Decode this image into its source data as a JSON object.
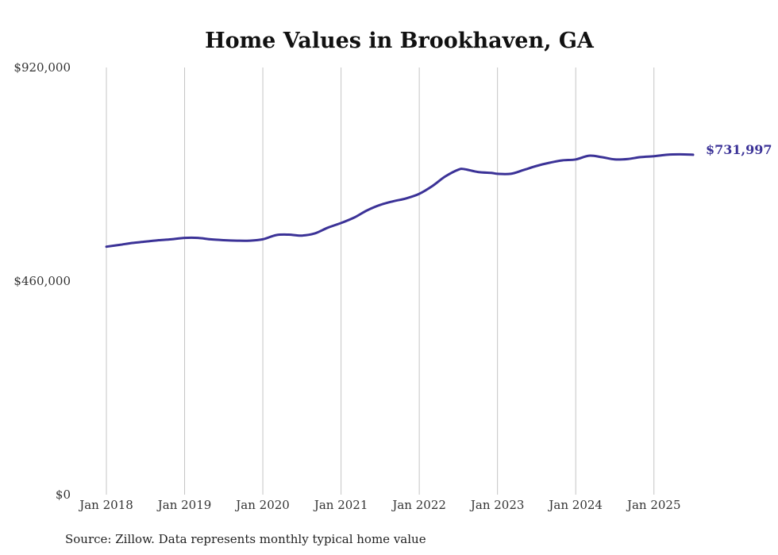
{
  "chart_data": {
    "type": "line",
    "title": "Home Values in Brookhaven, GA",
    "xlabel": "",
    "ylabel": "",
    "ylim": [
      0,
      920000
    ],
    "y_ticks": [
      0,
      460000,
      920000
    ],
    "y_tick_labels": [
      "$0",
      "$460,000",
      "$920,000"
    ],
    "x_range": [
      2018.0,
      2025.5
    ],
    "x_ticks": [
      2018,
      2019,
      2020,
      2021,
      2022,
      2023,
      2024,
      2025
    ],
    "x_tick_labels": [
      "Jan 2018",
      "Jan 2019",
      "Jan 2020",
      "Jan 2021",
      "Jan 2022",
      "Jan 2023",
      "Jan 2024",
      "Jan 2025"
    ],
    "vertical_grid": true,
    "series": [
      {
        "name": "Typical home value",
        "color": "#3b3297",
        "end_label": "$731,997",
        "points": [
          [
            2018.0,
            534000
          ],
          [
            2018.17,
            538000
          ],
          [
            2018.33,
            542000
          ],
          [
            2018.5,
            545000
          ],
          [
            2018.67,
            548000
          ],
          [
            2018.83,
            550000
          ],
          [
            2019.0,
            553000
          ],
          [
            2019.17,
            553000
          ],
          [
            2019.33,
            550000
          ],
          [
            2019.5,
            548000
          ],
          [
            2019.67,
            547000
          ],
          [
            2019.83,
            547000
          ],
          [
            2020.0,
            550000
          ],
          [
            2020.17,
            559000
          ],
          [
            2020.33,
            560000
          ],
          [
            2020.5,
            558000
          ],
          [
            2020.67,
            563000
          ],
          [
            2020.83,
            575000
          ],
          [
            2021.0,
            585000
          ],
          [
            2021.17,
            597000
          ],
          [
            2021.33,
            612000
          ],
          [
            2021.5,
            624000
          ],
          [
            2021.67,
            632000
          ],
          [
            2021.83,
            638000
          ],
          [
            2022.0,
            648000
          ],
          [
            2022.17,
            665000
          ],
          [
            2022.33,
            685000
          ],
          [
            2022.5,
            700000
          ],
          [
            2022.58,
            701000
          ],
          [
            2022.75,
            695000
          ],
          [
            2022.92,
            693000
          ],
          [
            2023.0,
            691000
          ],
          [
            2023.17,
            691000
          ],
          [
            2023.33,
            699000
          ],
          [
            2023.5,
            708000
          ],
          [
            2023.67,
            715000
          ],
          [
            2023.83,
            720000
          ],
          [
            2024.0,
            722000
          ],
          [
            2024.17,
            730000
          ],
          [
            2024.33,
            727000
          ],
          [
            2024.5,
            722000
          ],
          [
            2024.67,
            723000
          ],
          [
            2024.83,
            727000
          ],
          [
            2025.0,
            729000
          ],
          [
            2025.17,
            732000
          ],
          [
            2025.33,
            733000
          ],
          [
            2025.5,
            731997
          ]
        ]
      }
    ],
    "source": "Source: Zillow. Data represents monthly typical home value"
  }
}
